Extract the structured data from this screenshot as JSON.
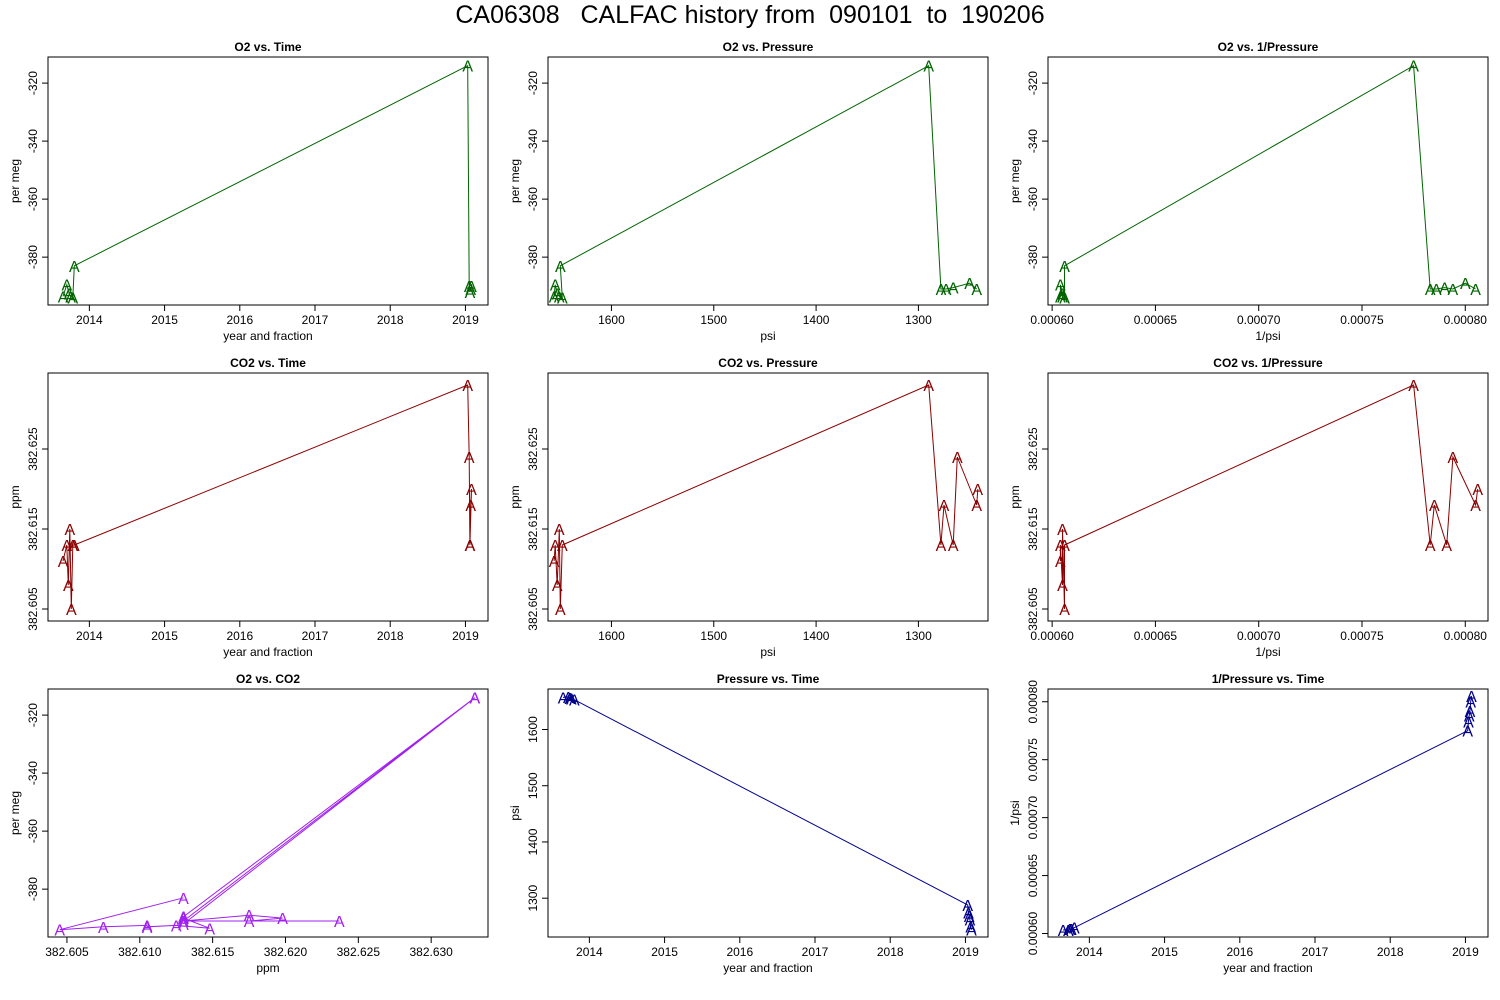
{
  "title": "CA06308   CALFAC history from  090101  to  190206",
  "chart_data": [
    {
      "title": "O2 vs. Time",
      "type": "line",
      "xlabel": "year and fraction",
      "ylabel": "per meg",
      "color": "#006400",
      "marker": "A",
      "xlim": [
        2013.45,
        2019.3
      ],
      "ylim": [
        -396.5,
        -311
      ],
      "xticks": [
        2014,
        2015,
        2016,
        2017,
        2018,
        2019
      ],
      "xticklabels": [
        "2014",
        "2015",
        "2016",
        "2017",
        "2018",
        "2019"
      ],
      "yticks": [
        -320,
        -340,
        -360,
        -380
      ],
      "yticklabels": [
        "-320",
        "-340",
        "-360",
        "-380"
      ],
      "points": [
        [
          2013.65,
          -393.5
        ],
        [
          2013.7,
          -389.5
        ],
        [
          2013.73,
          -392.5
        ],
        [
          2013.75,
          -393.5
        ],
        [
          2013.78,
          -394
        ],
        [
          2013.8,
          -383
        ],
        [
          2019.03,
          -314
        ],
        [
          2019.05,
          -390
        ],
        [
          2019.06,
          -392
        ],
        [
          2019.07,
          -391
        ],
        [
          2019.08,
          -390
        ]
      ]
    },
    {
      "title": "O2 vs. Pressure",
      "type": "line",
      "xlabel": "psi",
      "ylabel": "per meg",
      "color": "#006400",
      "marker": "A",
      "xlim": [
        1662,
        1232
      ],
      "ylim": [
        -396.5,
        -311
      ],
      "xticks": [
        1600,
        1500,
        1400,
        1300
      ],
      "xticklabels": [
        "1600",
        "1500",
        "1400",
        "1300"
      ],
      "yticks": [
        -320,
        -340,
        -360,
        -380
      ],
      "yticklabels": [
        "-320",
        "-340",
        "-360",
        "-380"
      ],
      "points": [
        [
          1656,
          -393.5
        ],
        [
          1655,
          -389.5
        ],
        [
          1653,
          -392.5
        ],
        [
          1651,
          -393.5
        ],
        [
          1648,
          -394
        ],
        [
          1650,
          -383
        ],
        [
          1290,
          -314
        ],
        [
          1278,
          -391
        ],
        [
          1273,
          -391
        ],
        [
          1266,
          -390.5
        ],
        [
          1250,
          -389
        ],
        [
          1243,
          -391
        ]
      ]
    },
    {
      "title": "O2 vs. 1/Pressure",
      "type": "line",
      "xlabel": "1/psi",
      "ylabel": "per meg",
      "color": "#006400",
      "marker": "A",
      "xlim": [
        0.000598,
        0.000811
      ],
      "ylim": [
        -396.5,
        -311
      ],
      "xticks": [
        0.0006,
        0.00065,
        0.0007,
        0.00075,
        0.0008
      ],
      "xticklabels": [
        "0.00060",
        "0.00065",
        "0.00070",
        "0.00075",
        "0.00080"
      ],
      "yticks": [
        -320,
        -340,
        -360,
        -380
      ],
      "yticklabels": [
        "-320",
        "-340",
        "-360",
        "-380"
      ],
      "points": [
        [
          0.000604,
          -393.5
        ],
        [
          0.000604,
          -389.5
        ],
        [
          0.000605,
          -392.5
        ],
        [
          0.000605,
          -393.5
        ],
        [
          0.000606,
          -394
        ],
        [
          0.000606,
          -383
        ],
        [
          0.000775,
          -314
        ],
        [
          0.000783,
          -391
        ],
        [
          0.000786,
          -391
        ],
        [
          0.00079,
          -390.5
        ],
        [
          0.000794,
          -391
        ],
        [
          0.0008,
          -389
        ],
        [
          0.000805,
          -391
        ]
      ]
    },
    {
      "title": "CO2 vs. Time",
      "type": "line",
      "xlabel": "year and fraction",
      "ylabel": "ppm",
      "color": "#8B0000",
      "marker": "A",
      "xlim": [
        2013.45,
        2019.3
      ],
      "ylim": [
        382.6035,
        382.6345
      ],
      "xticks": [
        2014,
        2015,
        2016,
        2017,
        2018,
        2019
      ],
      "xticklabels": [
        "2014",
        "2015",
        "2016",
        "2017",
        "2018",
        "2019"
      ],
      "yticks": [
        382.605,
        382.615,
        382.625
      ],
      "yticklabels": [
        "382.605",
        "382.615",
        "382.625"
      ],
      "points": [
        [
          2013.65,
          382.611
        ],
        [
          2013.7,
          382.613
        ],
        [
          2013.72,
          382.608
        ],
        [
          2013.74,
          382.615
        ],
        [
          2013.76,
          382.605
        ],
        [
          2013.78,
          382.613
        ],
        [
          2013.8,
          382.613
        ],
        [
          2019.03,
          382.633
        ],
        [
          2019.05,
          382.624
        ],
        [
          2019.06,
          382.613
        ],
        [
          2019.07,
          382.618
        ],
        [
          2019.08,
          382.62
        ],
        [
          2019.06,
          382.613
        ]
      ]
    },
    {
      "title": "CO2 vs. Pressure",
      "type": "line",
      "xlabel": "psi",
      "ylabel": "ppm",
      "color": "#8B0000",
      "marker": "A",
      "xlim": [
        1662,
        1232
      ],
      "ylim": [
        382.6035,
        382.6345
      ],
      "xticks": [
        1600,
        1500,
        1400,
        1300
      ],
      "xticklabels": [
        "1600",
        "1500",
        "1400",
        "1300"
      ],
      "yticks": [
        382.605,
        382.615,
        382.625
      ],
      "yticklabels": [
        "382.605",
        "382.615",
        "382.625"
      ],
      "points": [
        [
          1656,
          382.611
        ],
        [
          1655,
          382.613
        ],
        [
          1653,
          382.608
        ],
        [
          1651,
          382.615
        ],
        [
          1650,
          382.605
        ],
        [
          1648,
          382.613
        ],
        [
          1290,
          382.633
        ],
        [
          1278,
          382.613
        ],
        [
          1275,
          382.618
        ],
        [
          1266,
          382.613
        ],
        [
          1262,
          382.624
        ],
        [
          1243,
          382.618
        ],
        [
          1242,
          382.62
        ]
      ]
    },
    {
      "title": "CO2 vs. 1/Pressure",
      "type": "line",
      "xlabel": "1/psi",
      "ylabel": "ppm",
      "color": "#8B0000",
      "marker": "A",
      "xlim": [
        0.000598,
        0.000811
      ],
      "ylim": [
        382.6035,
        382.6345
      ],
      "xticks": [
        0.0006,
        0.00065,
        0.0007,
        0.00075,
        0.0008
      ],
      "xticklabels": [
        "0.00060",
        "0.00065",
        "0.00070",
        "0.00075",
        "0.00080"
      ],
      "yticks": [
        382.605,
        382.615,
        382.625
      ],
      "yticklabels": [
        "382.605",
        "382.615",
        "382.625"
      ],
      "points": [
        [
          0.000604,
          382.611
        ],
        [
          0.000604,
          382.613
        ],
        [
          0.000605,
          382.608
        ],
        [
          0.000605,
          382.615
        ],
        [
          0.000606,
          382.605
        ],
        [
          0.000606,
          382.613
        ],
        [
          0.000775,
          382.633
        ],
        [
          0.000783,
          382.613
        ],
        [
          0.000785,
          382.618
        ],
        [
          0.000791,
          382.613
        ],
        [
          0.000794,
          382.624
        ],
        [
          0.000805,
          382.618
        ],
        [
          0.000806,
          382.62
        ]
      ]
    },
    {
      "title": "O2 vs. CO2",
      "type": "line",
      "xlabel": "ppm",
      "ylabel": "per meg",
      "color": "#A020F0",
      "marker": "A",
      "xlim": [
        382.6037,
        382.6339
      ],
      "ylim": [
        -396.5,
        -311
      ],
      "xticks": [
        382.605,
        382.61,
        382.615,
        382.62,
        382.625,
        382.63
      ],
      "xticklabels": [
        "382.605",
        "382.610",
        "382.615",
        "382.620",
        "382.625",
        "382.630"
      ],
      "yticks": [
        -320,
        -340,
        -360,
        -380
      ],
      "yticklabels": [
        "-320",
        "-340",
        "-360",
        "-380"
      ],
      "points": [
        [
          382.613,
          -383
        ],
        [
          382.6045,
          -394
        ],
        [
          382.6075,
          -393
        ],
        [
          382.6105,
          -392.5
        ],
        [
          382.6105,
          -393
        ],
        [
          382.6125,
          -392.5
        ],
        [
          382.6148,
          -393.5
        ],
        [
          382.613,
          -390
        ],
        [
          382.613,
          -389.5
        ],
        [
          382.633,
          -314
        ],
        [
          382.613,
          -391
        ],
        [
          382.6175,
          -389
        ],
        [
          382.6198,
          -390
        ],
        [
          382.6175,
          -391
        ],
        [
          382.6237,
          -391
        ],
        [
          382.613,
          -391
        ],
        [
          382.633,
          -314
        ],
        [
          382.613,
          -392
        ]
      ]
    },
    {
      "title": "Pressure vs. Time",
      "type": "line",
      "xlabel": "year and fraction",
      "ylabel": "psi",
      "color": "#00008B",
      "marker": "A",
      "xlim": [
        2013.45,
        2019.3
      ],
      "ylim": [
        1231,
        1672
      ],
      "xticks": [
        2014,
        2015,
        2016,
        2017,
        2018,
        2019
      ],
      "xticklabels": [
        "2014",
        "2015",
        "2016",
        "2017",
        "2018",
        "2019"
      ],
      "yticks": [
        1300,
        1400,
        1500,
        1600
      ],
      "yticklabels": [
        "1300",
        "1400",
        "1500",
        "1600"
      ],
      "points": [
        [
          2013.65,
          1657
        ],
        [
          2013.72,
          1658
        ],
        [
          2013.74,
          1656
        ],
        [
          2013.76,
          1655
        ],
        [
          2013.8,
          1653
        ],
        [
          2019.03,
          1288
        ],
        [
          2019.04,
          1275
        ],
        [
          2019.05,
          1268
        ],
        [
          2019.06,
          1262
        ],
        [
          2019.07,
          1250
        ],
        [
          2019.08,
          1244
        ]
      ]
    },
    {
      "title": "1/Pressure vs. Time",
      "type": "line",
      "xlabel": "year and fraction",
      "ylabel": "1/psi",
      "color": "#00008B",
      "marker": "A",
      "xlim": [
        2013.45,
        2019.3
      ],
      "ylim": [
        0.000597,
        0.000811
      ],
      "xticks": [
        2014,
        2015,
        2016,
        2017,
        2018,
        2019
      ],
      "xticklabels": [
        "2014",
        "2015",
        "2016",
        "2017",
        "2018",
        "2019"
      ],
      "yticks": [
        0.0006,
        0.00065,
        0.0007,
        0.00075,
        0.0008
      ],
      "yticklabels": [
        "0.00060",
        "0.00065",
        "0.00070",
        "0.00075",
        "0.00080"
      ],
      "points": [
        [
          2013.65,
          0.000603
        ],
        [
          2013.72,
          0.000603
        ],
        [
          2013.74,
          0.000604
        ],
        [
          2013.76,
          0.000604
        ],
        [
          2013.8,
          0.000605
        ],
        [
          2019.03,
          0.000775
        ],
        [
          2019.04,
          0.000783
        ],
        [
          2019.05,
          0.000788
        ],
        [
          2019.06,
          0.000792
        ],
        [
          2019.07,
          0.0008
        ],
        [
          2019.08,
          0.000805
        ]
      ]
    }
  ]
}
